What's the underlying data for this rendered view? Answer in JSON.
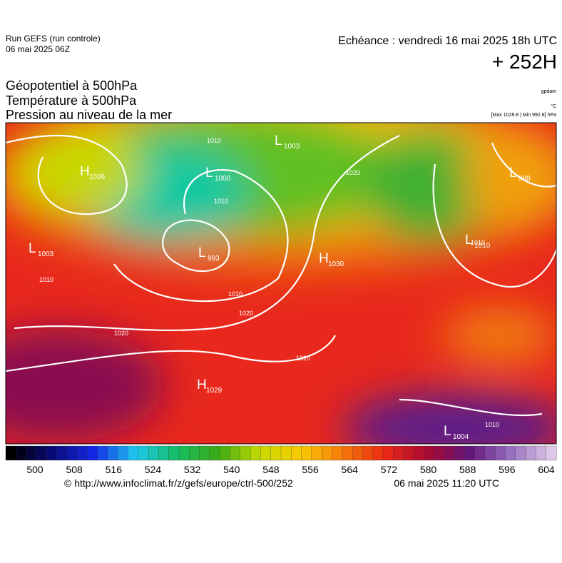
{
  "header": {
    "run": "Run GEFS (run controle)",
    "run_date": "06 mai 2025 06Z",
    "echeance": "Echéance : vendredi 16 mai 2025 18h UTC",
    "lead": "+ 252H"
  },
  "titles": [
    "Géopotentiel à 500hPa",
    "Température à 500hPa",
    "Pression au niveau de la mer"
  ],
  "units": {
    "geopotential": "gpdam",
    "temperature": "°C",
    "pressure": "[Max 1029.8 | Min 992.8] hPa"
  },
  "map": {
    "centers": [
      {
        "kind": "H",
        "value": "1026"
      },
      {
        "kind": "L",
        "value": "1003"
      },
      {
        "kind": "L",
        "value": "1000"
      },
      {
        "kind": "L",
        "value": "998"
      },
      {
        "kind": "L",
        "value": "1003"
      },
      {
        "kind": "L",
        "value": "993"
      },
      {
        "kind": "H",
        "value": "1030"
      },
      {
        "kind": "L",
        "value": "1010"
      },
      {
        "kind": "H",
        "value": "1029"
      },
      {
        "kind": "L",
        "value": "1004"
      }
    ],
    "isobar_labels": [
      "1010",
      "1020",
      "1010",
      "1010",
      "1020",
      "1010",
      "1010",
      "1020",
      "1020",
      "1010"
    ]
  },
  "colorbar": {
    "ticks": [
      500,
      508,
      516,
      524,
      532,
      540,
      548,
      556,
      564,
      572,
      580,
      588,
      596,
      604
    ]
  },
  "footer": {
    "source": "© http://www.infoclimat.fr/z/gefs/europe/ctrl-500/252",
    "issued": "06 mai 2025 11:20 UTC"
  }
}
